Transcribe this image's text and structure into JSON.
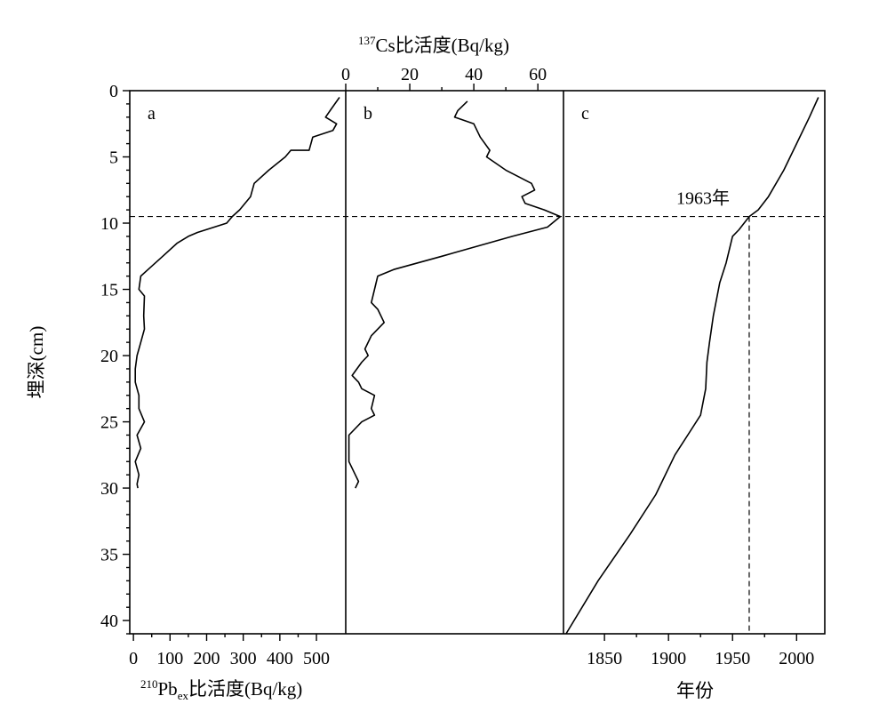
{
  "chart_data": {
    "type": "line",
    "y_axis": {
      "label": "埋深(cm)",
      "range": [
        0,
        41
      ],
      "inverted": true,
      "ticks": [
        0,
        5,
        10,
        15,
        20,
        25,
        30,
        35,
        40
      ],
      "tick_labels": [
        "0",
        "5",
        "10",
        "15",
        "20",
        "25",
        "30",
        "35",
        "40"
      ]
    },
    "reference_depth": 9.5,
    "panels": [
      {
        "letter": "a",
        "x_axis": {
          "position": "bottom",
          "label_prefix": "210",
          "label_main": "Pb",
          "label_sub": "ex",
          "label_rest": "比活度(Bq/kg)",
          "range": [
            -10,
            580
          ],
          "ticks": [
            0,
            100,
            200,
            300,
            400,
            500
          ],
          "tick_labels": [
            "0",
            "100",
            "200",
            "300",
            "400",
            "500"
          ]
        },
        "series": [
          {
            "points": [
              [
                563,
                0.5
              ],
              [
                540,
                1.4
              ],
              [
                525,
                2.0
              ],
              [
                555,
                2.5
              ],
              [
                545,
                3.0
              ],
              [
                490,
                3.5
              ],
              [
                480,
                4.5
              ],
              [
                430,
                4.5
              ],
              [
                415,
                5.0
              ],
              [
                370,
                6.0
              ],
              [
                330,
                7.0
              ],
              [
                320,
                8.0
              ],
              [
                290,
                9.0
              ],
              [
                270,
                9.5
              ],
              [
                255,
                10.0
              ],
              [
                175,
                10.7
              ],
              [
                150,
                11.0
              ],
              [
                120,
                11.5
              ],
              [
                80,
                12.5
              ],
              [
                40,
                13.5
              ],
              [
                20,
                14.0
              ],
              [
                15,
                15.0
              ],
              [
                30,
                15.5
              ],
              [
                28,
                17.0
              ],
              [
                30,
                18.0
              ],
              [
                20,
                19.0
              ],
              [
                15,
                19.5
              ],
              [
                10,
                20.0
              ],
              [
                5,
                21.0
              ],
              [
                5,
                22.0
              ],
              [
                15,
                23.0
              ],
              [
                15,
                24.0
              ],
              [
                30,
                25.0
              ],
              [
                10,
                26.0
              ],
              [
                20,
                27.0
              ],
              [
                5,
                28.0
              ],
              [
                15,
                29.0
              ],
              [
                10,
                29.7
              ],
              [
                12,
                30.0
              ]
            ]
          }
        ]
      },
      {
        "letter": "b",
        "x_axis": {
          "position": "top",
          "label_prefix": "137",
          "label_main": "Cs比活度(Bq/kg)",
          "range": [
            0,
            68
          ],
          "ticks": [
            0,
            20,
            40,
            60
          ],
          "tick_labels": [
            "0",
            "20",
            "40",
            "60"
          ]
        },
        "series": [
          {
            "points": [
              [
                38,
                0.8
              ],
              [
                35,
                1.5
              ],
              [
                34,
                2.0
              ],
              [
                40,
                2.5
              ],
              [
                42,
                3.5
              ],
              [
                45,
                4.5
              ],
              [
                44,
                5.0
              ],
              [
                50,
                6.0
              ],
              [
                58,
                7.0
              ],
              [
                59,
                7.5
              ],
              [
                55,
                8.0
              ],
              [
                56,
                8.5
              ],
              [
                62,
                9.0
              ],
              [
                67,
                9.5
              ],
              [
                63,
                10.3
              ],
              [
                52,
                11.0
              ],
              [
                30,
                12.5
              ],
              [
                15,
                13.5
              ],
              [
                10,
                14.0
              ],
              [
                9,
                15.0
              ],
              [
                8,
                16.0
              ],
              [
                10,
                16.5
              ],
              [
                12,
                17.5
              ],
              [
                8,
                18.5
              ],
              [
                6,
                19.5
              ],
              [
                7,
                20.0
              ],
              [
                5,
                20.5
              ],
              [
                2,
                21.5
              ],
              [
                4,
                22.0
              ],
              [
                5,
                22.5
              ],
              [
                9,
                23.0
              ],
              [
                8,
                24.0
              ],
              [
                9,
                24.5
              ],
              [
                5,
                25.0
              ],
              [
                1,
                26.0
              ],
              [
                1,
                27.0
              ],
              [
                1,
                28.0
              ],
              [
                3,
                29.0
              ],
              [
                4,
                29.5
              ],
              [
                3,
                30.0
              ]
            ]
          }
        ]
      },
      {
        "letter": "c",
        "x_axis": {
          "position": "bottom",
          "label": "年份",
          "range": [
            1818,
            2022
          ],
          "ticks": [
            1850,
            1900,
            1950,
            2000
          ],
          "tick_labels": [
            "1850",
            "1900",
            "1950",
            "2000"
          ]
        },
        "reference_year": 1963,
        "annotation": "1963年",
        "series": [
          {
            "points": [
              [
                2017,
                0.5
              ],
              [
                2010,
                2.0
              ],
              [
                2000,
                4.0
              ],
              [
                1990,
                6.0
              ],
              [
                1978,
                8.0
              ],
              [
                1970,
                9.0
              ],
              [
                1963,
                9.5
              ],
              [
                1955,
                10.5
              ],
              [
                1950,
                11.0
              ],
              [
                1945,
                13.0
              ],
              [
                1940,
                14.5
              ],
              [
                1935,
                17.0
              ],
              [
                1932,
                19.0
              ],
              [
                1930,
                20.5
              ],
              [
                1929,
                22.5
              ],
              [
                1925,
                24.5
              ],
              [
                1915,
                26.0
              ],
              [
                1905,
                27.5
              ],
              [
                1895,
                29.5
              ],
              [
                1890,
                30.5
              ],
              [
                1870,
                33.5
              ],
              [
                1845,
                37.0
              ],
              [
                1820,
                41.0
              ]
            ]
          }
        ]
      }
    ]
  }
}
